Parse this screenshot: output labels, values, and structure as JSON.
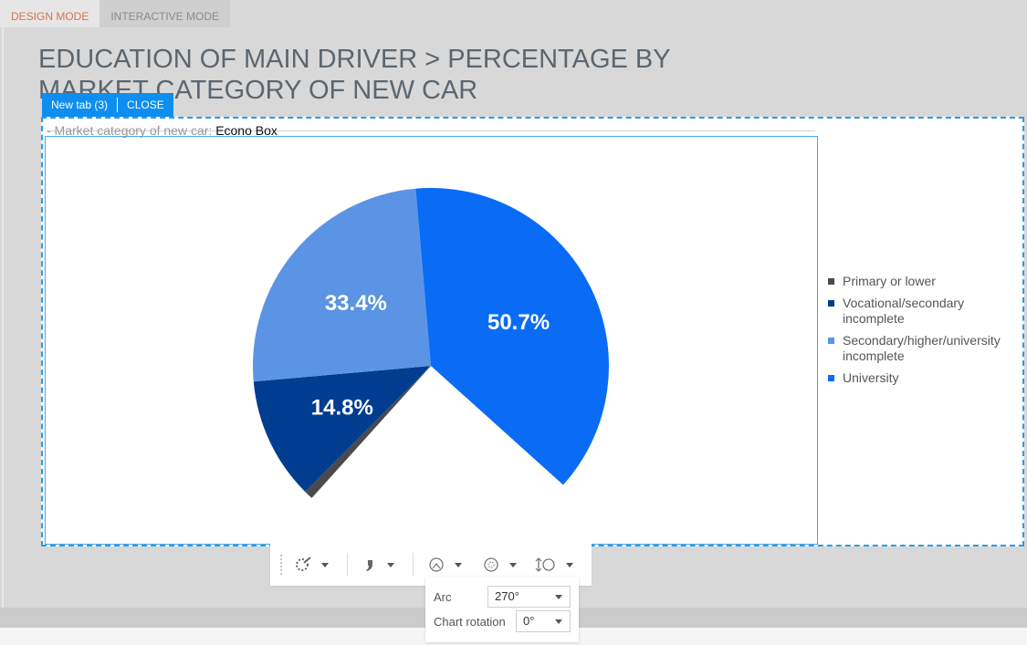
{
  "mode_tabs": {
    "design": "DESIGN MODE",
    "interactive": "INTERACTIVE MODE"
  },
  "title": "EDUCATION OF MAIN DRIVER > PERCENTAGE BY MARKET CATEGORY OF NEW CAR",
  "widget_tab": {
    "name": "New tab (3)",
    "close": "CLOSE"
  },
  "filter": {
    "label": "- Market category of new car:",
    "value": "Econo Box"
  },
  "toolbar": {
    "items": [
      "magic-wand-icon",
      "quote-icon",
      "arc-icon",
      "rotation-icon",
      "height-icon"
    ]
  },
  "popover": {
    "arc_label": "Arc",
    "arc_value": "270°",
    "rotation_label": "Chart rotation",
    "rotation_value": "0°"
  },
  "colors": {
    "accent": "#0d8ef0",
    "primary": "#4a4a4a",
    "vocational": "#003d91",
    "secondary": "#5b94e4",
    "university": "#0a6cf5"
  },
  "chart_data": {
    "type": "pie",
    "arc_degrees": 270,
    "rotation_degrees": 0,
    "categories": [
      "Primary or lower",
      "Vocational/secondary incomplete",
      "Secondary/higher/university incomplete",
      "University"
    ],
    "values": [
      1.1,
      14.8,
      33.4,
      50.7
    ],
    "labels": [
      "",
      "14.8%",
      "33.4%",
      "50.7%"
    ],
    "colors": [
      "#4a4a4a",
      "#003d91",
      "#5b94e4",
      "#0a6cf5"
    ],
    "legend_position": "right"
  }
}
